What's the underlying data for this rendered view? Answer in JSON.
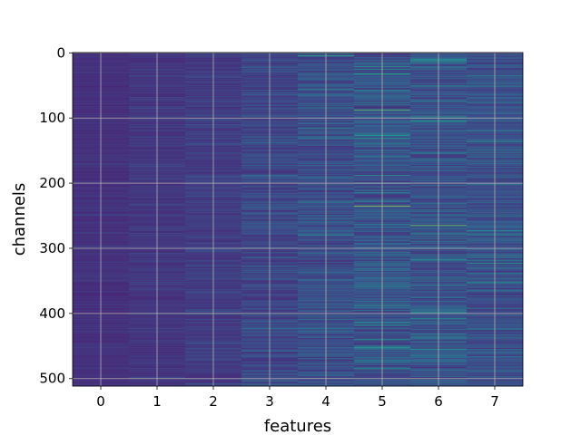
{
  "chart_data": {
    "type": "heatmap",
    "title": "",
    "xlabel": "features",
    "ylabel": "channels",
    "x_categories": [
      "0",
      "1",
      "2",
      "3",
      "4",
      "5",
      "6",
      "7"
    ],
    "y_ticks": [
      0,
      100,
      200,
      300,
      400,
      500
    ],
    "ylim": [
      511.5,
      -0.5
    ],
    "n_rows": 512,
    "grid": true,
    "colormap": "viridis",
    "column_mean_intensity": [
      0.16,
      0.18,
      0.2,
      0.24,
      0.27,
      0.3,
      0.29,
      0.28
    ],
    "column_variability": [
      0.03,
      0.04,
      0.05,
      0.08,
      0.1,
      0.13,
      0.12,
      0.11
    ],
    "highlights": [
      {
        "feature": 4,
        "channel": 4,
        "level": 0.7
      },
      {
        "feature": 5,
        "channel": 88,
        "level": 0.85
      },
      {
        "feature": 5,
        "channel": 235,
        "level": 0.92
      },
      {
        "feature": 6,
        "channel": 265,
        "level": 0.88
      },
      {
        "feature": 6,
        "channel": 97,
        "level": 0.6
      },
      {
        "feature": 7,
        "channel": 137,
        "level": 0.65
      },
      {
        "feature": 7,
        "channel": 323,
        "level": 0.65
      },
      {
        "feature": 5,
        "channel": 452,
        "level": 0.6
      },
      {
        "feature": 4,
        "channel": 115,
        "level": 0.6
      },
      {
        "feature": 6,
        "channel": 13,
        "level": 0.55
      }
    ]
  }
}
